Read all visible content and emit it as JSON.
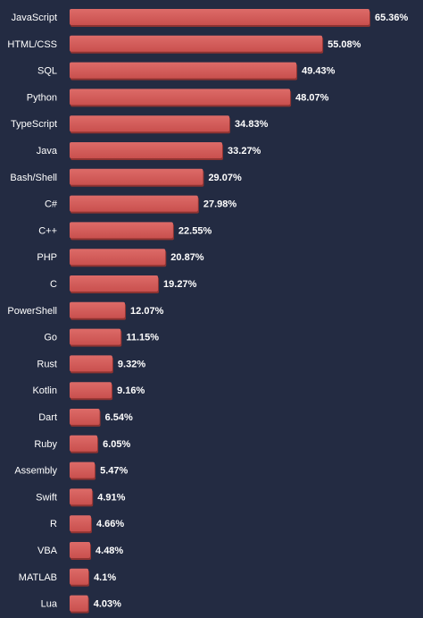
{
  "colors": {
    "background": "#232b42",
    "bar": "#c9504e",
    "bar_shadow": "#8f3331",
    "bar_highlight": "#dd6b68",
    "text": "#ffffff"
  },
  "chart_data": {
    "type": "bar",
    "orientation": "horizontal",
    "title": "",
    "xlabel": "",
    "ylabel": "",
    "grid": false,
    "xlim": [
      0,
      65.36
    ],
    "categories": [
      "JavaScript",
      "HTML/CSS",
      "SQL",
      "Python",
      "TypeScript",
      "Java",
      "Bash/Shell",
      "C#",
      "C++",
      "PHP",
      "C",
      "PowerShell",
      "Go",
      "Rust",
      "Kotlin",
      "Dart",
      "Ruby",
      "Assembly",
      "Swift",
      "R",
      "VBA",
      "MATLAB",
      "Lua"
    ],
    "values": [
      65.36,
      55.08,
      49.43,
      48.07,
      34.83,
      33.27,
      29.07,
      27.98,
      22.55,
      20.87,
      19.27,
      12.07,
      11.15,
      9.32,
      9.16,
      6.54,
      6.05,
      5.47,
      4.91,
      4.66,
      4.48,
      4.1,
      4.03
    ],
    "value_labels": [
      "65.36%",
      "55.08%",
      "49.43%",
      "48.07%",
      "34.83%",
      "33.27%",
      "29.07%",
      "27.98%",
      "22.55%",
      "20.87%",
      "19.27%",
      "12.07%",
      "11.15%",
      "9.32%",
      "9.16%",
      "6.54%",
      "6.05%",
      "5.47%",
      "4.91%",
      "4.66%",
      "4.48%",
      "4.1%",
      "4.03%"
    ]
  }
}
